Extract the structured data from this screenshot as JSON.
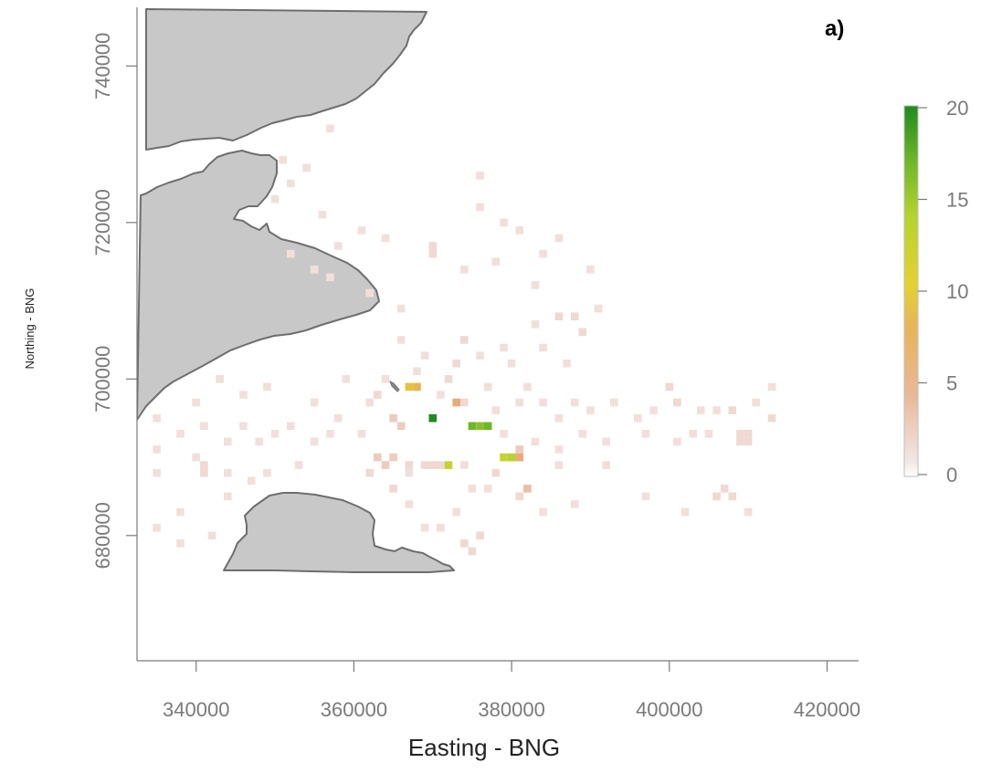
{
  "panel_label": "a)",
  "x_axis_title": "Easting - BNG",
  "y_axis_title": "Northing - BNG",
  "x_ticks": [
    "340000",
    "360000",
    "380000",
    "400000",
    "420000"
  ],
  "y_ticks": [
    "680000",
    "700000",
    "720000",
    "740000"
  ],
  "legend_ticks": [
    "0",
    "5",
    "10",
    "15",
    "20"
  ],
  "colors": {
    "land_fill": "#c8c8c8",
    "land_outline": "#6e6e6e",
    "ramp_low": "#f2e6e6",
    "ramp_mid_low": "#e8a882",
    "ramp_mid": "#e3c13a",
    "ramp_mid_high": "#a6cc2e",
    "ramp_high": "#1f8a1f"
  },
  "chart_data": {
    "type": "heatmap",
    "xlabel": "Easting - BNG",
    "ylabel": "Northing - BNG",
    "xlim": [
      332500,
      424000
    ],
    "ylim": [
      664000,
      747500
    ],
    "x_ticks": [
      340000,
      360000,
      380000,
      400000,
      420000
    ],
    "y_ticks": [
      680000,
      700000,
      720000,
      740000
    ],
    "legend": {
      "position": "right",
      "min": 0,
      "max": 20,
      "ticks": [
        0,
        5,
        10,
        15,
        20
      ]
    },
    "cell_size": 1000,
    "cells": [
      [
        351000,
        728000,
        0.5
      ],
      [
        354000,
        727000,
        0.5
      ],
      [
        357000,
        732000,
        0.5
      ],
      [
        352000,
        725000,
        0.5
      ],
      [
        350000,
        723000,
        0.5
      ],
      [
        356000,
        721000,
        0.5
      ],
      [
        361000,
        719000,
        0.5
      ],
      [
        364000,
        718000,
        0.5
      ],
      [
        358000,
        717000,
        0.5
      ],
      [
        352000,
        716000,
        0.5
      ],
      [
        355000,
        714000,
        0.5
      ],
      [
        357000,
        713000,
        0.5
      ],
      [
        362000,
        711000,
        0.5
      ],
      [
        366000,
        709000,
        0.5
      ],
      [
        370000,
        717000,
        1
      ],
      [
        370000,
        716000,
        1
      ],
      [
        374000,
        714000,
        0.5
      ],
      [
        378000,
        715000,
        0.5
      ],
      [
        379000,
        720000,
        0.5
      ],
      [
        381000,
        719000,
        0.5
      ],
      [
        376000,
        726000,
        0.5
      ],
      [
        376000,
        722000,
        0.5
      ],
      [
        384000,
        716000,
        0.5
      ],
      [
        386000,
        718000,
        0.5
      ],
      [
        390000,
        714000,
        0.5
      ],
      [
        391000,
        709000,
        0.5
      ],
      [
        389000,
        706000,
        1
      ],
      [
        386000,
        708000,
        1
      ],
      [
        388000,
        708000,
        1
      ],
      [
        383000,
        712000,
        0.5
      ],
      [
        384000,
        704000,
        0.5
      ],
      [
        383000,
        707000,
        0.5
      ],
      [
        387000,
        702000,
        0.5
      ],
      [
        380000,
        702000,
        0.5
      ],
      [
        379000,
        704000,
        0.5
      ],
      [
        376000,
        703000,
        0.5
      ],
      [
        374000,
        705000,
        1
      ],
      [
        373000,
        702000,
        1
      ],
      [
        372000,
        700000,
        1
      ],
      [
        374000,
        697000,
        1
      ],
      [
        377000,
        699000,
        0.5
      ],
      [
        369000,
        703000,
        0.5
      ],
      [
        366000,
        705000,
        0.5
      ],
      [
        368000,
        701000,
        0.5
      ],
      [
        364000,
        700000,
        0.5
      ],
      [
        363000,
        698000,
        1
      ],
      [
        367000,
        699000,
        9
      ],
      [
        368000,
        699000,
        8
      ],
      [
        370000,
        695000,
        20
      ],
      [
        371000,
        698000,
        0.5
      ],
      [
        373000,
        697000,
        6
      ],
      [
        375000,
        694000,
        16
      ],
      [
        376000,
        694000,
        15
      ],
      [
        377000,
        694000,
        16
      ],
      [
        378000,
        696000,
        0.5
      ],
      [
        381000,
        697000,
        0.5
      ],
      [
        382000,
        699000,
        0.5
      ],
      [
        384000,
        697000,
        0.5
      ],
      [
        386000,
        695000,
        0.5
      ],
      [
        388000,
        697000,
        0.5
      ],
      [
        390000,
        696000,
        0.5
      ],
      [
        393000,
        697000,
        0.5
      ],
      [
        396000,
        695000,
        0.5
      ],
      [
        398000,
        696000,
        0.5
      ],
      [
        400000,
        699000,
        1
      ],
      [
        401000,
        697000,
        1
      ],
      [
        404000,
        696000,
        0.5
      ],
      [
        406000,
        696000,
        0.5
      ],
      [
        408000,
        696000,
        1
      ],
      [
        411000,
        697000,
        0.5
      ],
      [
        413000,
        695000,
        1
      ],
      [
        413000,
        699000,
        0.5
      ],
      [
        403000,
        693000,
        0.5
      ],
      [
        405000,
        693000,
        0.5
      ],
      [
        409000,
        693000,
        1
      ],
      [
        410000,
        693000,
        1
      ],
      [
        409000,
        692000,
        1
      ],
      [
        410000,
        692000,
        1
      ],
      [
        401000,
        692000,
        0.5
      ],
      [
        397000,
        693000,
        0.5
      ],
      [
        392000,
        692000,
        0.5
      ],
      [
        389000,
        693000,
        0.5
      ],
      [
        386000,
        691000,
        0.5
      ],
      [
        383000,
        692000,
        0.5
      ],
      [
        381000,
        691000,
        2
      ],
      [
        380000,
        690000,
        13
      ],
      [
        379000,
        690000,
        12
      ],
      [
        381000,
        690000,
        6
      ],
      [
        379000,
        693000,
        0.5
      ],
      [
        378000,
        688000,
        1
      ],
      [
        382000,
        686000,
        3
      ],
      [
        381000,
        685000,
        1
      ],
      [
        386000,
        689000,
        0.5
      ],
      [
        374000,
        689000,
        0.5
      ],
      [
        372000,
        689000,
        12
      ],
      [
        371000,
        689000,
        1
      ],
      [
        370000,
        689000,
        1
      ],
      [
        369000,
        689000,
        1
      ],
      [
        367000,
        689000,
        1
      ],
      [
        365000,
        690000,
        2
      ],
      [
        364000,
        689000,
        2
      ],
      [
        363000,
        690000,
        2
      ],
      [
        362000,
        688000,
        1
      ],
      [
        365000,
        686000,
        1
      ],
      [
        367000,
        688000,
        0.5
      ],
      [
        366000,
        694000,
        2
      ],
      [
        365000,
        695000,
        2
      ],
      [
        361000,
        693000,
        0.5
      ],
      [
        357000,
        693000,
        0.5
      ],
      [
        355000,
        692000,
        0.5
      ],
      [
        352000,
        694000,
        0.5
      ],
      [
        350000,
        693000,
        0.5
      ],
      [
        348000,
        692000,
        0.5
      ],
      [
        346000,
        694000,
        0.5
      ],
      [
        344000,
        692000,
        0.5
      ],
      [
        341000,
        694000,
        0.5
      ],
      [
        338000,
        693000,
        0.5
      ],
      [
        335000,
        695000,
        0.5
      ],
      [
        335000,
        691000,
        0.5
      ],
      [
        335000,
        688000,
        0.5
      ],
      [
        341000,
        688000,
        1
      ],
      [
        341000,
        689000,
        1
      ],
      [
        340000,
        690000,
        0.5
      ],
      [
        344000,
        688000,
        0.5
      ],
      [
        344000,
        685000,
        0.5
      ],
      [
        347000,
        687000,
        0.5
      ],
      [
        349000,
        688000,
        0.5
      ],
      [
        338000,
        683000,
        0.5
      ],
      [
        338000,
        679000,
        0.5
      ],
      [
        342000,
        680000,
        0.5
      ],
      [
        335000,
        681000,
        0.5
      ],
      [
        353000,
        689000,
        0.5
      ],
      [
        355000,
        697000,
        0.5
      ],
      [
        358000,
        695000,
        0.5
      ],
      [
        362000,
        697000,
        0.5
      ],
      [
        367000,
        684000,
        0.5
      ],
      [
        369000,
        681000,
        0.5
      ],
      [
        371000,
        681000,
        0.5
      ],
      [
        374000,
        679000,
        1
      ],
      [
        375000,
        678000,
        1
      ],
      [
        376000,
        680000,
        1
      ],
      [
        373000,
        683000,
        0.5
      ],
      [
        375000,
        686000,
        0.5
      ],
      [
        377000,
        686000,
        0.5
      ],
      [
        384000,
        683000,
        0.5
      ],
      [
        388000,
        684000,
        0.5
      ],
      [
        392000,
        689000,
        0.5
      ],
      [
        397000,
        685000,
        0.5
      ],
      [
        402000,
        683000,
        0.5
      ],
      [
        406000,
        685000,
        1
      ],
      [
        407000,
        686000,
        1
      ],
      [
        408000,
        685000,
        1
      ],
      [
        410000,
        683000,
        0.5
      ],
      [
        359000,
        700000,
        0.5
      ],
      [
        346000,
        698000,
        0.5
      ],
      [
        349000,
        699000,
        0.5
      ],
      [
        343000,
        700000,
        0.5
      ],
      [
        340000,
        697000,
        0.5
      ]
    ]
  }
}
